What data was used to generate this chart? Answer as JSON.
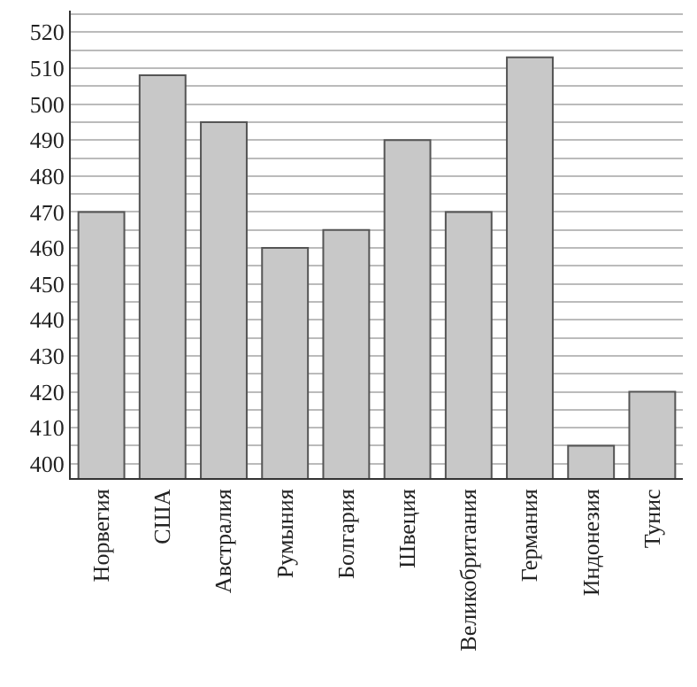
{
  "chart_data": {
    "type": "bar",
    "categories": [
      "Норвегия",
      "США",
      "Австралия",
      "Румыния",
      "Болгария",
      "Швеция",
      "Великобритания",
      "Германия",
      "Индонезия",
      "Тунис"
    ],
    "values": [
      470,
      508,
      495,
      460,
      465,
      490,
      470,
      513,
      405,
      420
    ],
    "color": "#c8c8c8",
    "ylim": [
      396,
      526
    ],
    "yticks": [
      400,
      {
        "value": 405,
        "label": null
      },
      410,
      {
        "value": 415,
        "label": null
      },
      420,
      {
        "value": 425,
        "label": null
      },
      430,
      {
        "value": 435,
        "label": null
      },
      440,
      {
        "value": 445,
        "label": null
      },
      450,
      {
        "value": 455,
        "label": null
      },
      460,
      {
        "value": 465,
        "label": null
      },
      470,
      {
        "value": 475,
        "label": null
      },
      480,
      {
        "value": 485,
        "label": null
      },
      490,
      {
        "value": 495,
        "label": null
      },
      500,
      {
        "value": 505,
        "label": null
      },
      510,
      {
        "value": 515,
        "label": null
      },
      520,
      {
        "value": 525,
        "label": null
      }
    ],
    "grid": "y"
  }
}
